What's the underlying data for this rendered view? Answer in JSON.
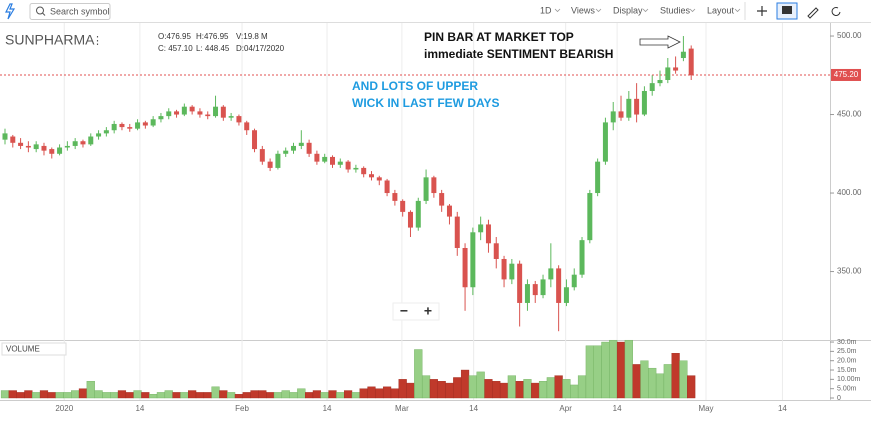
{
  "toolbar": {
    "search_placeholder": "Search symbol",
    "interval": "1D",
    "menus": [
      "Views",
      "Display",
      "Studies",
      "Layout"
    ]
  },
  "chart_data": {
    "type": "candlestick",
    "symbol": "SUNPHARMA",
    "legend": [
      "O:476.95",
      "H:476.95",
      "V:19.8 M",
      "C: 457.10",
      "L: 448.45",
      "D:04/17/2020"
    ],
    "annotations": [
      "PIN BAR AT MARKET TOP",
      "immediate SENTIMENT BEARISH",
      "AND LOTS OF UPPER",
      "WICK IN LAST FEW DAYS"
    ],
    "colors": {
      "up": "#5cb85c",
      "down": "#d9534f",
      "volume_up": "#97cf86",
      "volume_down": "#c0392b"
    },
    "series": {
      "open": [
        434,
        436,
        432,
        430,
        428,
        430,
        428,
        425,
        429,
        430,
        433,
        431,
        436,
        438,
        440,
        444,
        442,
        441,
        445,
        443,
        447,
        449,
        452,
        450,
        455,
        452,
        450,
        449,
        455,
        448,
        449,
        445,
        440,
        428,
        420,
        416,
        425,
        427,
        430,
        432,
        425,
        420,
        423,
        418,
        420,
        415,
        416,
        412,
        410,
        408,
        400,
        395,
        388,
        378,
        395,
        410,
        400,
        392,
        385,
        365,
        340,
        375,
        380,
        368,
        358,
        345,
        355,
        330,
        342,
        335,
        345,
        352,
        330,
        340,
        348,
        370,
        400,
        420,
        445,
        452,
        448,
        460,
        450,
        465,
        470,
        472,
        480,
        486,
        492
      ],
      "high": [
        441,
        437,
        435,
        433,
        433,
        432,
        429,
        431,
        433,
        435,
        434,
        438,
        440,
        442,
        446,
        445,
        444,
        447,
        446,
        449,
        451,
        454,
        453,
        457,
        456,
        454,
        452,
        462,
        456,
        451,
        450,
        446,
        441,
        430,
        422,
        427,
        429,
        432,
        440,
        434,
        427,
        425,
        424,
        422,
        421,
        418,
        417,
        414,
        411,
        409,
        402,
        396,
        389,
        397,
        415,
        411,
        402,
        393,
        388,
        368,
        378,
        385,
        383,
        372,
        360,
        358,
        357,
        345,
        344,
        348,
        368,
        354,
        345,
        352,
        372,
        402,
        422,
        448,
        458,
        462,
        465,
        470,
        468,
        475,
        478,
        486,
        487,
        500,
        494
      ],
      "low": [
        431,
        429,
        428,
        426,
        426,
        424,
        422,
        424,
        427,
        428,
        429,
        430,
        434,
        436,
        438,
        440,
        439,
        440,
        441,
        442,
        445,
        447,
        448,
        449,
        450,
        448,
        447,
        448,
        446,
        446,
        443,
        437,
        426,
        418,
        414,
        415,
        423,
        425,
        428,
        423,
        418,
        419,
        416,
        416,
        413,
        413,
        410,
        408,
        405,
        398,
        392,
        385,
        372,
        376,
        393,
        397,
        388,
        380,
        360,
        325,
        335,
        370,
        362,
        352,
        340,
        342,
        315,
        325,
        330,
        333,
        340,
        312,
        328,
        338,
        346,
        368,
        398,
        418,
        440,
        446,
        446,
        445,
        449,
        462,
        468,
        470,
        476,
        484,
        472
      ],
      "close": [
        438,
        432,
        430,
        429,
        431,
        427,
        425,
        429,
        430,
        433,
        431,
        436,
        438,
        440,
        444,
        442,
        441,
        445,
        443,
        447,
        449,
        452,
        450,
        455,
        452,
        450,
        449,
        455,
        448,
        449,
        445,
        440,
        428,
        420,
        416,
        425,
        427,
        430,
        432,
        425,
        420,
        423,
        418,
        420,
        415,
        416,
        412,
        410,
        408,
        400,
        395,
        388,
        378,
        395,
        410,
        400,
        392,
        385,
        365,
        340,
        375,
        380,
        368,
        358,
        345,
        355,
        330,
        342,
        335,
        345,
        352,
        330,
        340,
        348,
        370,
        400,
        420,
        445,
        452,
        448,
        460,
        450,
        465,
        470,
        472,
        480,
        478,
        490,
        475
      ]
    },
    "last_price": {
      "value": 475.2,
      "label": "475.20"
    },
    "ylim": [
      306.4,
      508.3
    ],
    "yticks": [
      {
        "value": 350,
        "label": "350.00"
      },
      {
        "value": 400,
        "label": "400.00"
      },
      {
        "value": 450,
        "label": "450.00"
      },
      {
        "value": 500,
        "label": "500.00"
      }
    ],
    "xlim": [
      -0.64,
      105.8
    ],
    "xticks": [
      {
        "value": 7.6,
        "label": "2020"
      },
      {
        "value": 17.3,
        "label": "14"
      },
      {
        "value": 30.4,
        "label": "Feb"
      },
      {
        "value": 41.3,
        "label": "14"
      },
      {
        "value": 50.9,
        "label": "Mar"
      },
      {
        "value": 60.1,
        "label": "14"
      },
      {
        "value": 71.9,
        "label": "Apr"
      },
      {
        "value": 78.5,
        "label": "14"
      },
      {
        "value": 89.9,
        "label": "May"
      },
      {
        "value": 99.7,
        "label": "14"
      }
    ],
    "volume_panel": {
      "title": "VOLUME",
      "values": [
        4,
        4,
        3,
        4,
        3,
        4,
        3,
        3,
        3,
        4,
        5,
        9,
        4,
        3,
        3,
        4,
        3,
        4,
        3,
        2,
        3,
        4,
        3,
        3,
        4,
        3,
        3,
        6,
        4,
        3,
        2,
        3,
        4,
        4,
        3,
        3,
        4,
        3,
        5,
        3,
        4,
        3,
        4,
        3,
        4,
        3,
        5,
        6,
        5,
        6,
        5,
        10,
        8,
        26,
        12,
        10,
        9,
        8,
        11,
        15,
        12,
        14,
        10,
        9,
        8,
        12,
        9,
        10,
        8,
        9,
        11,
        12,
        10,
        7,
        12,
        28,
        28,
        30,
        31,
        30,
        31,
        18,
        20,
        16,
        13,
        18,
        24,
        20,
        12
      ],
      "ylim": [
        0,
        31.1
      ],
      "yticks": [
        0,
        {
          "value": 5,
          "label": "5.00m"
        },
        {
          "value": 10,
          "label": "10.00m"
        },
        {
          "value": 15,
          "label": "15.0m"
        },
        {
          "value": 20,
          "label": "20.0m"
        },
        {
          "value": 25,
          "label": "25.0m"
        },
        {
          "value": 30,
          "label": "30.0m"
        }
      ]
    }
  }
}
